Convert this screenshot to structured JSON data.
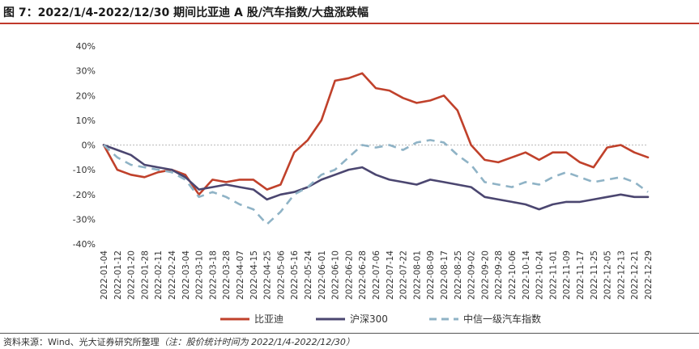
{
  "header": {
    "title": "图 7：2022/1/4-2022/12/30 期间比亚迪 A 股/汽车指数/大盘涨跌幅"
  },
  "footer": {
    "source": "资料来源：Wind、光大证券研究所整理",
    "note": "（注：股价统计时间为 2022/1/4-2022/12/30）"
  },
  "colors": {
    "byd": "#C0412B",
    "hs300": "#4B4670",
    "auto": "#8FB3C6",
    "rule": "#c0392b"
  },
  "chart_data": {
    "type": "line",
    "title": "",
    "xlabel": "",
    "ylabel": "",
    "ylim": [
      -40,
      40
    ],
    "yticks": [
      -40,
      -30,
      -20,
      -10,
      0,
      10,
      20,
      30,
      40
    ],
    "ytick_labels": [
      "-40%",
      "-30%",
      "-20%",
      "-10%",
      "0%",
      "10%",
      "20%",
      "30%",
      "40%"
    ],
    "grid": false,
    "legend_position": "bottom",
    "categories": [
      "2022-01-04",
      "2022-01-12",
      "2022-01-20",
      "2022-01-28",
      "2022-02-11",
      "2022-02-24",
      "2022-03-04",
      "2022-03-10",
      "2022-03-18",
      "2022-03-28",
      "2022-04-07",
      "2022-04-15",
      "2022-04-25",
      "2022-05-06",
      "2022-05-16",
      "2022-05-24",
      "2022-06-01",
      "2022-06-10",
      "2022-06-20",
      "2022-06-28",
      "2022-07-06",
      "2022-07-14",
      "2022-07-22",
      "2022-08-01",
      "2022-08-09",
      "2022-08-17",
      "2022-08-25",
      "2022-09-02",
      "2022-09-20",
      "2022-09-28",
      "2022-10-06",
      "2022-10-14",
      "2022-10-24",
      "2022-11-01",
      "2022-11-09",
      "2022-11-17",
      "2022-11-25",
      "2022-12-05",
      "2022-12-13",
      "2022-12-21",
      "2022-12-29"
    ],
    "series": [
      {
        "name": "比亚迪",
        "style": "solid",
        "values": [
          0,
          -10,
          -12,
          -13,
          -11,
          -10,
          -12,
          -20,
          -14,
          -15,
          -14,
          -14,
          -18,
          -16,
          -3,
          2,
          10,
          26,
          27,
          29,
          23,
          22,
          19,
          17,
          18,
          20,
          14,
          0,
          -6,
          -7,
          -5,
          -3,
          -6,
          -3,
          -3,
          -7,
          -9,
          -1,
          0,
          -3,
          -5
        ]
      },
      {
        "name": "沪深300",
        "style": "solid",
        "values": [
          0,
          -2,
          -4,
          -8,
          -9,
          -10,
          -13,
          -18,
          -17,
          -16,
          -17,
          -18,
          -22,
          -20,
          -19,
          -17,
          -14,
          -12,
          -10,
          -9,
          -12,
          -14,
          -15,
          -16,
          -14,
          -15,
          -16,
          -17,
          -21,
          -22,
          -23,
          -24,
          -26,
          -24,
          -23,
          -23,
          -22,
          -21,
          -20,
          -21,
          -21
        ]
      },
      {
        "name": "中信一级汽车指数",
        "style": "dashed",
        "values": [
          0,
          -5,
          -8,
          -9,
          -10,
          -11,
          -14,
          -21,
          -19,
          -21,
          -24,
          -26,
          -32,
          -27,
          -20,
          -17,
          -12,
          -10,
          -5,
          0,
          -1,
          0,
          -2,
          1,
          2,
          1,
          -4,
          -8,
          -15,
          -16,
          -17,
          -15,
          -16,
          -13,
          -11,
          -13,
          -15,
          -14,
          -13,
          -15,
          -19
        ]
      }
    ]
  }
}
